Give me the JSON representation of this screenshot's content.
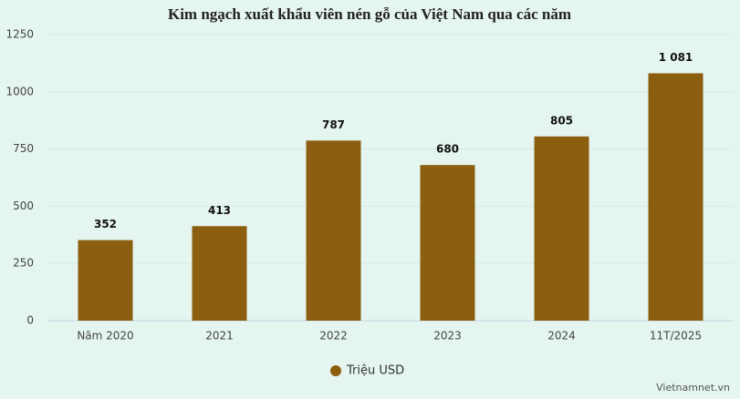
{
  "chart_data": {
    "type": "bar",
    "title": "Kim ngạch xuất khẩu viên nén gỗ của Việt Nam qua các năm",
    "categories": [
      "Năm 2020",
      "2021",
      "2022",
      "2023",
      "2024",
      "11T/2025"
    ],
    "series": [
      {
        "name": "Triệu USD",
        "color": "#8b5e10",
        "values": [
          352,
          413,
          787,
          680,
          805,
          1081
        ],
        "value_labels": [
          "352",
          "413",
          "787",
          "680",
          "805",
          "1 081"
        ]
      }
    ],
    "ylim": [
      0,
      1250
    ],
    "yticks": [
      0,
      250,
      500,
      750,
      1000,
      1250
    ],
    "grid": true,
    "legend": "bottom",
    "source": "Vietnamnet.vn"
  }
}
